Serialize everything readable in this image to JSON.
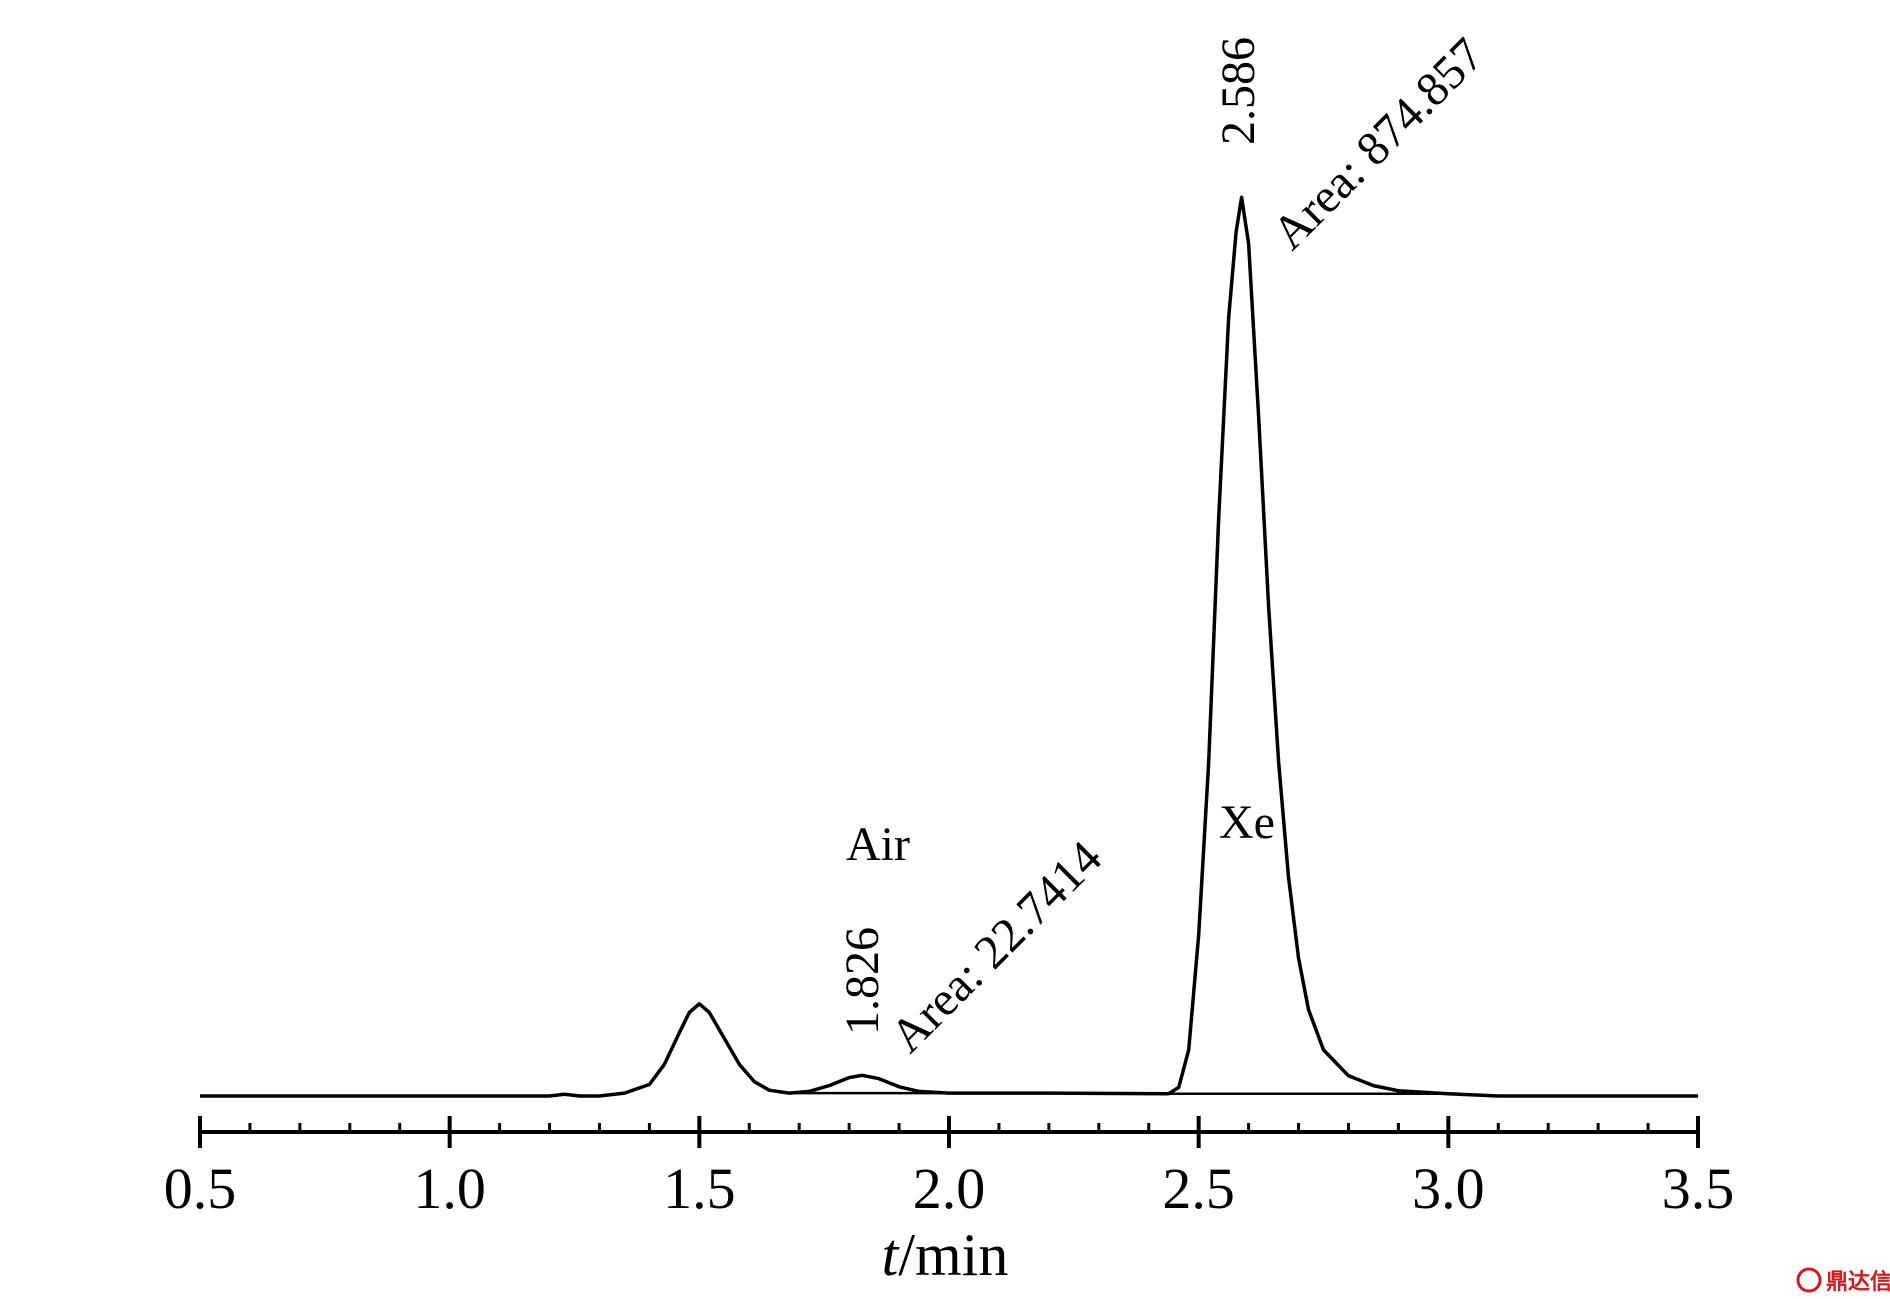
{
  "chart_data": {
    "type": "line",
    "title": "",
    "xlabel_italic": "t",
    "xlabel_unit": "/min",
    "ylabel": "",
    "xlim": [
      0.5,
      3.5
    ],
    "xticks_major": [
      "0.5",
      "1.0",
      "1.5",
      "2.0",
      "2.5",
      "3.0",
      "3.5"
    ],
    "minor_tick_step": 0.1,
    "grid": false,
    "series": [
      {
        "points": [
          [
            0.5,
            0
          ],
          [
            1.2,
            0
          ],
          [
            1.23,
            0.3
          ],
          [
            1.26,
            0
          ],
          [
            1.3,
            0
          ],
          [
            1.35,
            0.5
          ],
          [
            1.4,
            2.0
          ],
          [
            1.43,
            5.5
          ],
          [
            1.46,
            11.0
          ],
          [
            1.48,
            14.5
          ],
          [
            1.5,
            16.0
          ],
          [
            1.52,
            14.5
          ],
          [
            1.55,
            10.0
          ],
          [
            1.58,
            5.5
          ],
          [
            1.61,
            2.5
          ],
          [
            1.64,
            1.0
          ],
          [
            1.68,
            0.5
          ],
          [
            1.72,
            0.8
          ],
          [
            1.76,
            1.8
          ],
          [
            1.8,
            3.2
          ],
          [
            1.826,
            3.6
          ],
          [
            1.86,
            3.0
          ],
          [
            1.9,
            1.6
          ],
          [
            1.94,
            0.8
          ],
          [
            2.0,
            0.5
          ],
          [
            2.2,
            0.5
          ],
          [
            2.44,
            0.4
          ],
          [
            2.46,
            1.5
          ],
          [
            2.48,
            8.0
          ],
          [
            2.5,
            28.0
          ],
          [
            2.52,
            58.0
          ],
          [
            2.54,
            100.0
          ],
          [
            2.56,
            135.0
          ],
          [
            2.575,
            150.0
          ],
          [
            2.586,
            156.0
          ],
          [
            2.6,
            148.0
          ],
          [
            2.62,
            118.0
          ],
          [
            2.64,
            85.0
          ],
          [
            2.66,
            58.0
          ],
          [
            2.68,
            38.0
          ],
          [
            2.7,
            24.0
          ],
          [
            2.72,
            15.0
          ],
          [
            2.75,
            8.0
          ],
          [
            2.8,
            3.5
          ],
          [
            2.85,
            1.8
          ],
          [
            2.9,
            0.9
          ],
          [
            3.0,
            0.4
          ],
          [
            3.1,
            0
          ],
          [
            3.5,
            0
          ]
        ]
      }
    ],
    "baselines": [
      [
        [
          1.68,
          0.5
        ],
        [
          2.0,
          0.5
        ]
      ],
      [
        [
          2.44,
          0.4
        ],
        [
          3.0,
          0.4
        ]
      ]
    ],
    "peaks": [
      {
        "retention_time": "1.826",
        "area_label": "Area: 22.7414",
        "compound": "Air"
      },
      {
        "retention_time": "2.586",
        "area_label": "Area: 874.857",
        "compound": "Xe"
      }
    ]
  },
  "watermark": {
    "text": "鼎达信",
    "icon": "logo-badge-icon",
    "color": "#d7191c"
  }
}
